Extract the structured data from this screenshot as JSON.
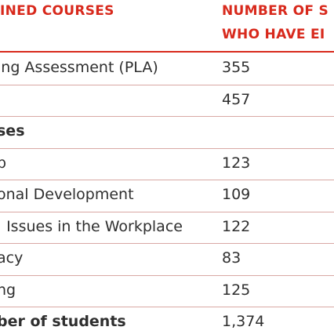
{
  "table": {
    "header": {
      "col1": "INED COURSES",
      "col2": [
        "NUMBER OF S",
        "WHO HAVE EI"
      ]
    },
    "rows": [
      {
        "label": "ing Assessment (PLA)",
        "count": "355"
      },
      {
        "count": "457"
      },
      {
        "label": "ses",
        "bold": true
      },
      {
        "label": "p",
        "count": "123"
      },
      {
        "label": "onal Development",
        "count": "109"
      },
      {
        "label": ". Issues in the Workplace",
        "count": "122"
      },
      {
        "label": "acy",
        "count": "83"
      },
      {
        "label": "ng",
        "count": "125"
      },
      {
        "label": "ber of students",
        "count": "1,374",
        "bold": true
      }
    ]
  }
}
